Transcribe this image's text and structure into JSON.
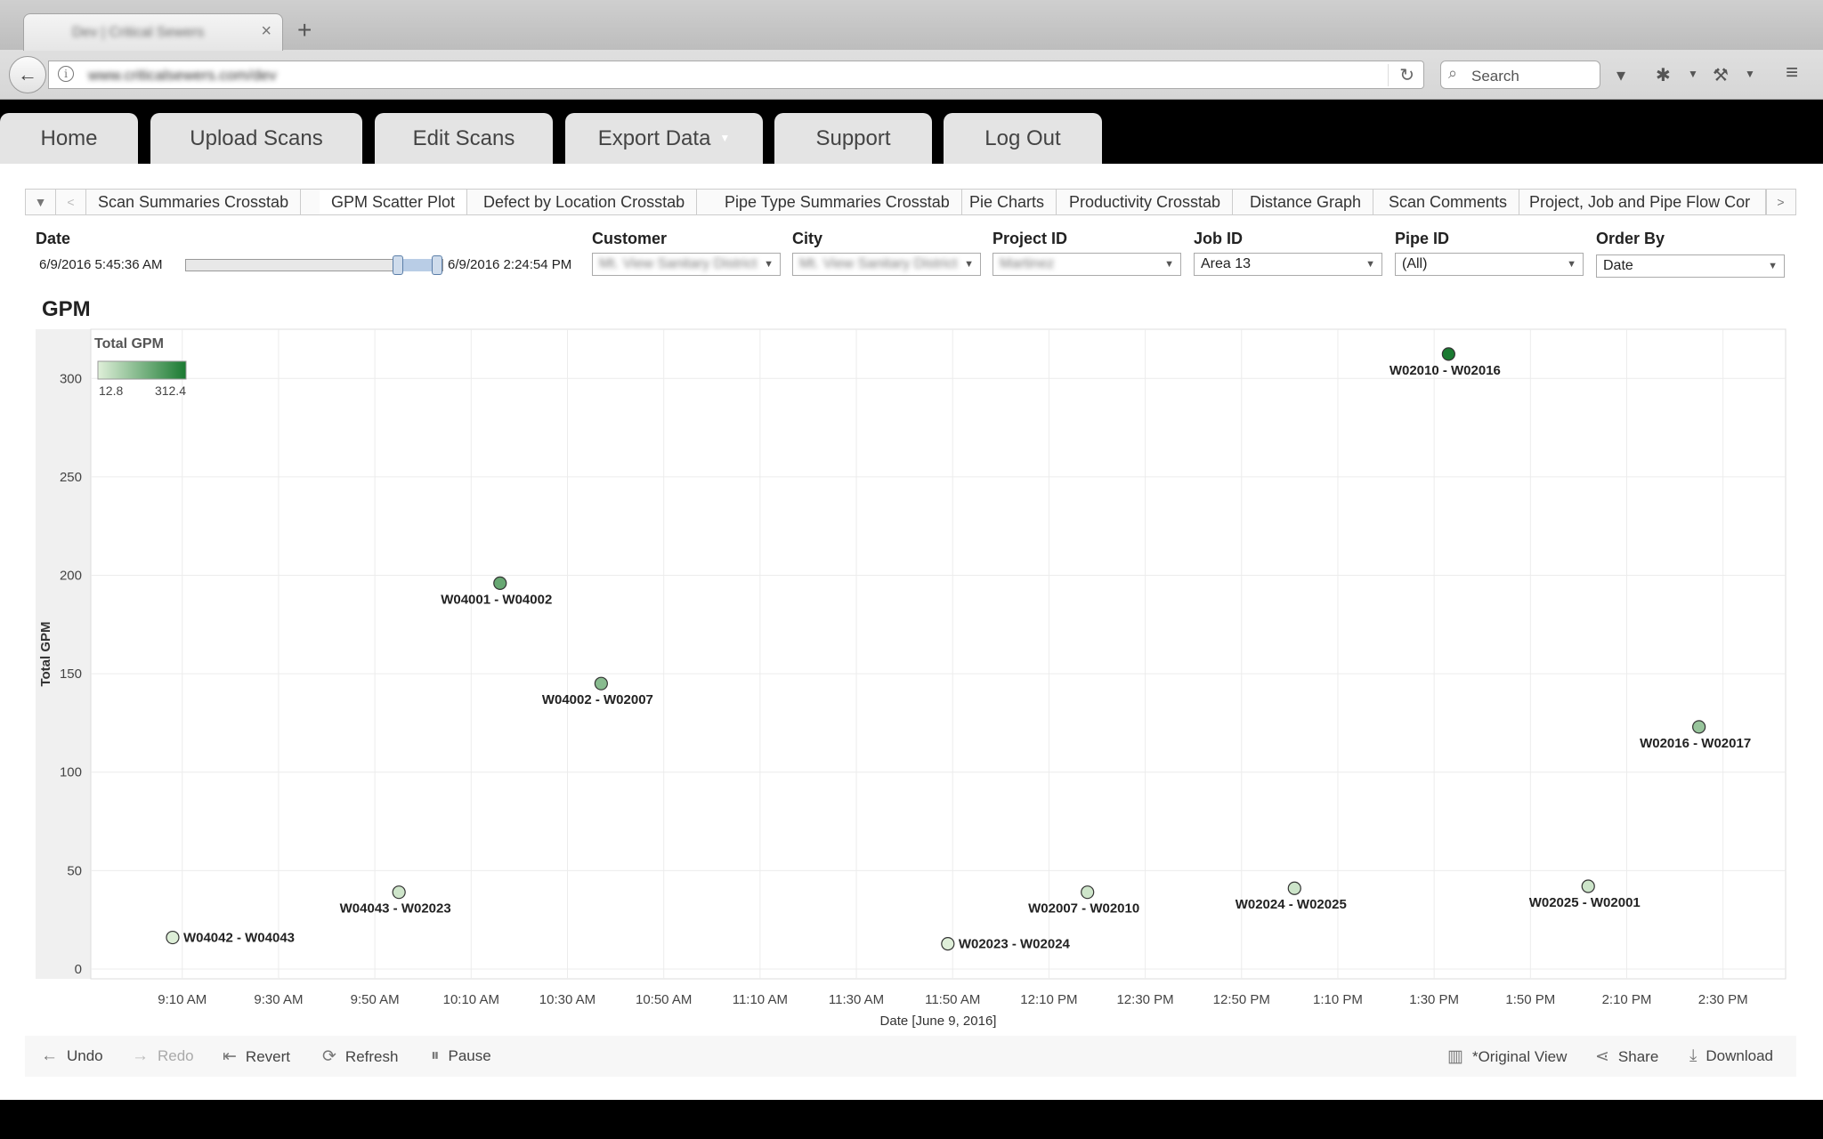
{
  "browser": {
    "tab_title": "Dev | Critical Sewers",
    "url": "www.criticalsewers.com/dev",
    "search_placeholder": "Search"
  },
  "nav": {
    "tabs": [
      "Home",
      "Upload Scans",
      "Edit Scans",
      "Export Data",
      "Support",
      "Log Out"
    ]
  },
  "sheet_tabs": [
    "Scan Summaries Crosstab",
    "GPM Scatter Plot",
    "Defect by Location Crosstab",
    "Pipe Type Summaries Crosstab",
    "Pie Charts",
    "Productivity Crosstab",
    "Distance Graph",
    "Scan Comments",
    "Project, Job and Pipe Flow Cor"
  ],
  "active_sheet_tab": "GPM Scatter Plot",
  "filters": {
    "date": {
      "label": "Date",
      "start": "6/9/2016 5:45:36 AM",
      "end": "6/9/2016 2:24:54 PM"
    },
    "customer": {
      "label": "Customer",
      "value": "Mt. View Sanitary District"
    },
    "city": {
      "label": "City",
      "value": "Mt. View Sanitary District"
    },
    "project_id": {
      "label": "Project ID",
      "value": "Martinez"
    },
    "job_id": {
      "label": "Job ID",
      "value": "Area 13"
    },
    "pipe_id": {
      "label": "Pipe ID",
      "value": "(All)"
    },
    "order_by": {
      "label": "Order By",
      "value": "Date"
    }
  },
  "chart_title": "GPM",
  "chart_data": {
    "type": "scatter",
    "title": "GPM",
    "xlabel": "Date  [June 9, 2016]",
    "ylabel": "Total GPM",
    "x_ticks": [
      "9:10 AM",
      "9:30 AM",
      "9:50 AM",
      "10:10 AM",
      "10:30 AM",
      "10:50 AM",
      "11:10 AM",
      "11:30 AM",
      "11:50 AM",
      "12:10 PM",
      "12:30 PM",
      "12:50 PM",
      "1:10 PM",
      "1:30 PM",
      "1:50 PM",
      "2:10 PM",
      "2:30 PM"
    ],
    "y_ticks": [
      0,
      50,
      100,
      150,
      200,
      250,
      300
    ],
    "xlim": [
      "8:51 AM",
      "2:43 PM"
    ],
    "ylim": [
      -5,
      325
    ],
    "grid": true,
    "legend": {
      "title": "Total GPM",
      "min": "12.8",
      "max": "312.4",
      "position": "top-left"
    },
    "color_scale": [
      "#dfefd9",
      "#1a7a31"
    ],
    "points": [
      {
        "label": "W04042 - W04043",
        "x": "9:08 AM",
        "y": 16
      },
      {
        "label": "W04043 - W02023",
        "x": "9:55 AM",
        "y": 39
      },
      {
        "label": "W04001 - W04002",
        "x": "10:16 AM",
        "y": 196
      },
      {
        "label": "W04002 - W02007",
        "x": "10:37 AM",
        "y": 145
      },
      {
        "label": "W02023 - W02024",
        "x": "11:49 AM",
        "y": 12.8
      },
      {
        "label": "W02007 - W02010",
        "x": "12:18 PM",
        "y": 39
      },
      {
        "label": "W02024 - W02025",
        "x": "1:01 PM",
        "y": 41
      },
      {
        "label": "W02010 - W02016",
        "x": "1:33 PM",
        "y": 312.4
      },
      {
        "label": "W02025 - W02001",
        "x": "2:02 PM",
        "y": 42
      },
      {
        "label": "W02016 - W02017",
        "x": "2:25 PM",
        "y": 123
      }
    ]
  },
  "toolbar": {
    "undo": "Undo",
    "redo": "Redo",
    "revert": "Revert",
    "refresh": "Refresh",
    "pause": "Pause",
    "original_view": "*Original View",
    "share": "Share",
    "download": "Download"
  }
}
